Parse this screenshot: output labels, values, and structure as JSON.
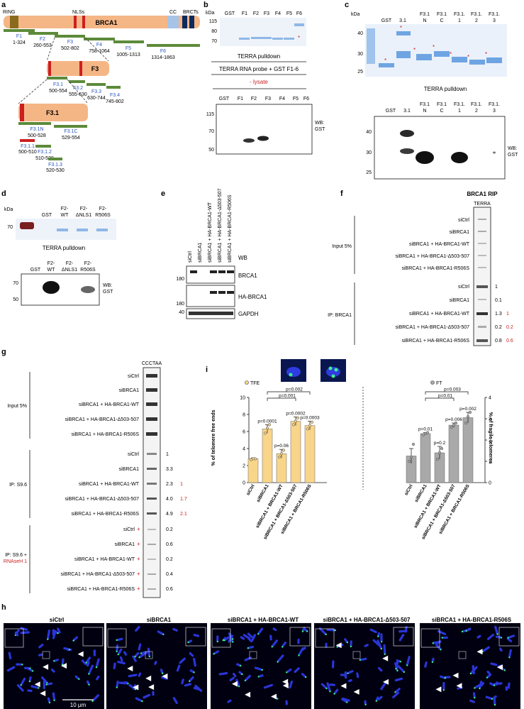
{
  "panels": {
    "a": "a",
    "b": "b",
    "c": "c",
    "d": "d",
    "e": "e",
    "f": "f",
    "g": "g",
    "h": "h",
    "i": "i"
  },
  "panel_a": {
    "domain_labels": [
      "RING",
      "NLSs",
      "CC",
      "BRCTs"
    ],
    "protein": "BRCA1",
    "fragments": [
      {
        "name": "F1",
        "range": "1-324"
      },
      {
        "name": "F2",
        "range": "260-553"
      },
      {
        "name": "F3",
        "range": "502-802"
      },
      {
        "name": "F4",
        "range": "758-1064"
      },
      {
        "name": "F5",
        "range": "1005-1313"
      },
      {
        "name": "F6",
        "range": "1314-1863"
      }
    ],
    "f3_box": "F3",
    "f3_sub": [
      {
        "name": "F3.1",
        "range": "500-554"
      },
      {
        "name": "F3.2",
        "range": "555-630"
      },
      {
        "name": "F3.3",
        "range": "630-744"
      },
      {
        "name": "F3.4",
        "range": "745-802"
      }
    ],
    "f31_box": "F3.1",
    "f31_sub": [
      {
        "name": "F3.1N",
        "range": "500-528"
      },
      {
        "name": "F3.1C",
        "range": "529-554"
      },
      {
        "name": "F3.1.1",
        "range": "500-510"
      },
      {
        "name": "F3.1.2",
        "range": "510-520"
      },
      {
        "name": "F3.1.3",
        "range": "520-530"
      }
    ]
  },
  "panel_b": {
    "kda": "kDa",
    "top_markers": [
      "115",
      "80",
      "70"
    ],
    "lanes": [
      "GST",
      "F1",
      "F2",
      "F3",
      "F4",
      "F5",
      "F6"
    ],
    "caption": "TERRA pulldown",
    "probe_line": "TERRA RNA probe + GST F1-6",
    "lysate": "- lysate",
    "bottom_markers": [
      "115",
      "70",
      "50"
    ],
    "wb": "WB:",
    "wb_target": "GST"
  },
  "panel_c": {
    "kda": "kDa",
    "top_markers": [
      "40",
      "30",
      "25"
    ],
    "lanes": [
      [
        "GST",
        ""
      ],
      [
        "3.1",
        ""
      ],
      [
        "F3.1",
        "N"
      ],
      [
        "F3.1",
        "C"
      ],
      [
        "F3.1.",
        "1"
      ],
      [
        "F3.1.",
        "2"
      ],
      [
        "F3.1.",
        "3"
      ]
    ],
    "caption": "TERRA pulldown",
    "bottom_markers": [
      "40",
      "30",
      "25"
    ],
    "wb": "WB:",
    "wb_target": "GST"
  },
  "panel_d": {
    "kda": "kDa",
    "lanes": [
      [
        "GST",
        ""
      ],
      [
        "F2-",
        "WT"
      ],
      [
        "F2-",
        "ΔNLS1"
      ],
      [
        "F2-",
        "R506S"
      ]
    ],
    "top_marker": "70",
    "caption": "TERRA pulldown",
    "bottom_markers": [
      "70",
      "50"
    ],
    "wb": "WB:",
    "wb_target": "GST"
  },
  "panel_e": {
    "lanes": [
      "siCtrl",
      "siBRCA1",
      "siBRCA1 + HA-BRCA1-WT",
      "siBRCA1 + HA-BRCA1-Δ503-507",
      "siBRCA1 + HA-BRCA1-R506S"
    ],
    "wb": "WB",
    "blots": [
      {
        "marker": "180",
        "label": "BRCA1"
      },
      {
        "marker": "180",
        "label": "HA-BRCA1"
      },
      {
        "marker": "40",
        "label": "GAPDH"
      }
    ]
  },
  "panel_f": {
    "title": "BRCA1 RIP",
    "column": "TERRA",
    "rows": [
      "siCtrl",
      "siBRCA1",
      "siBRCA1 + HA-BRCA1-WT",
      "siBRCA1 + HA-BRCA1-Δ503-507",
      "siBRCA1 + HA-BRCA1-R506S"
    ],
    "group_input": "Input 5%",
    "group_ip": "IP: BRCA1",
    "ip_values": [
      "1",
      "0.1",
      "1.3",
      "0.2",
      "0.8"
    ],
    "ip_values_red": [
      "",
      "",
      "1",
      "0.2",
      "0.6"
    ]
  },
  "panel_g": {
    "column": "CCCTAA",
    "rows": [
      "siCtrl",
      "siBRCA1",
      "siBRCA1 + HA-BRCA1-WT",
      "siBRCA1 + HA-BRCA1-Δ503-507",
      "siBRCA1 + HA-BRCA1-R506S"
    ],
    "group_input": "Input 5%",
    "group_ip": "IP: S9.6",
    "group_rnase_1": "IP: S9.6 +",
    "group_rnase_2": "RNAseH 1",
    "plus": "+",
    "ip_values": [
      "1",
      "3.3",
      "2.3",
      "4.0",
      "4.9"
    ],
    "ip_values_red": [
      "",
      "",
      "1",
      "1.7",
      "2.1"
    ],
    "rnase_values": [
      "0.2",
      "0.6",
      "0.2",
      "0.4",
      "0.6"
    ]
  },
  "panel_h": {
    "titles": [
      "siCtrl",
      "siBRCA1",
      "siBRCA1 + HA-BRCA1-WT",
      "siBRCA1 + HA-BRCA1-Δ503-507",
      "siBRCA1 + HA-BRCA1-R506S"
    ],
    "scale_bar": "10 μm"
  },
  "chart_data": [
    {
      "type": "bar",
      "categories": [
        "siCtrl",
        "siBRCA1",
        "siBRCA1 + BRCA1-WT",
        "siBRCA1 + BRCA1-Δ503-507",
        "siBRCA1 + BRCA1-R506S"
      ],
      "values": [
        2.8,
        6.3,
        3.4,
        7.2,
        6.7
      ],
      "errors": [
        0.1,
        0.5,
        0.5,
        0.5,
        0.5
      ],
      "points": [
        [
          2.7,
          2.8,
          2.8
        ],
        [
          5.8,
          6.4,
          6.8
        ],
        [
          3.0,
          3.4,
          3.8
        ],
        [
          6.8,
          7.2,
          7.6
        ],
        [
          6.3,
          6.7,
          7.1
        ]
      ],
      "color": "#f9d58a",
      "legend": "TFE",
      "ylabel": "% of telomere free ends",
      "ylim": [
        0,
        10
      ],
      "yticks": [
        "0",
        "2",
        "4",
        "6",
        "8",
        "10"
      ],
      "bar_pvalues": [
        "",
        "p=0.0001",
        "p=0.06",
        "p=0.0002",
        "p=0.0003"
      ],
      "brackets": [
        "p=0.002",
        "p=0.001"
      ]
    },
    {
      "type": "bar",
      "categories": [
        "siCtrl",
        "siBRCA1",
        "siBRCA1 + BRCA1-WT",
        "siBRCA1 + BRCA1-Δ503-507",
        "siBRCA1 + BRCA1-R506S"
      ],
      "values": [
        1.25,
        2.3,
        1.4,
        2.7,
        3.05
      ],
      "errors": [
        0.35,
        0.05,
        0.3,
        0.1,
        0.25
      ],
      "points": [
        [
          1.0,
          1.2,
          1.8
        ],
        [
          2.25,
          2.3,
          2.35
        ],
        [
          1.1,
          1.4,
          1.6
        ],
        [
          2.6,
          2.7,
          2.8
        ],
        [
          2.8,
          3.1,
          3.3
        ]
      ],
      "color": "#a9a9a9",
      "legend": "FT",
      "ylabel": "% of fragile telomeres",
      "ylim": [
        0,
        4
      ],
      "yticks": [
        "0",
        "1",
        "2",
        "3",
        "4"
      ],
      "bar_pvalues": [
        "",
        "p=0.01",
        "p=0.2",
        "p=0.006",
        "p=0.002"
      ],
      "brackets": [
        "p=0.003",
        "p=0.01"
      ]
    }
  ]
}
